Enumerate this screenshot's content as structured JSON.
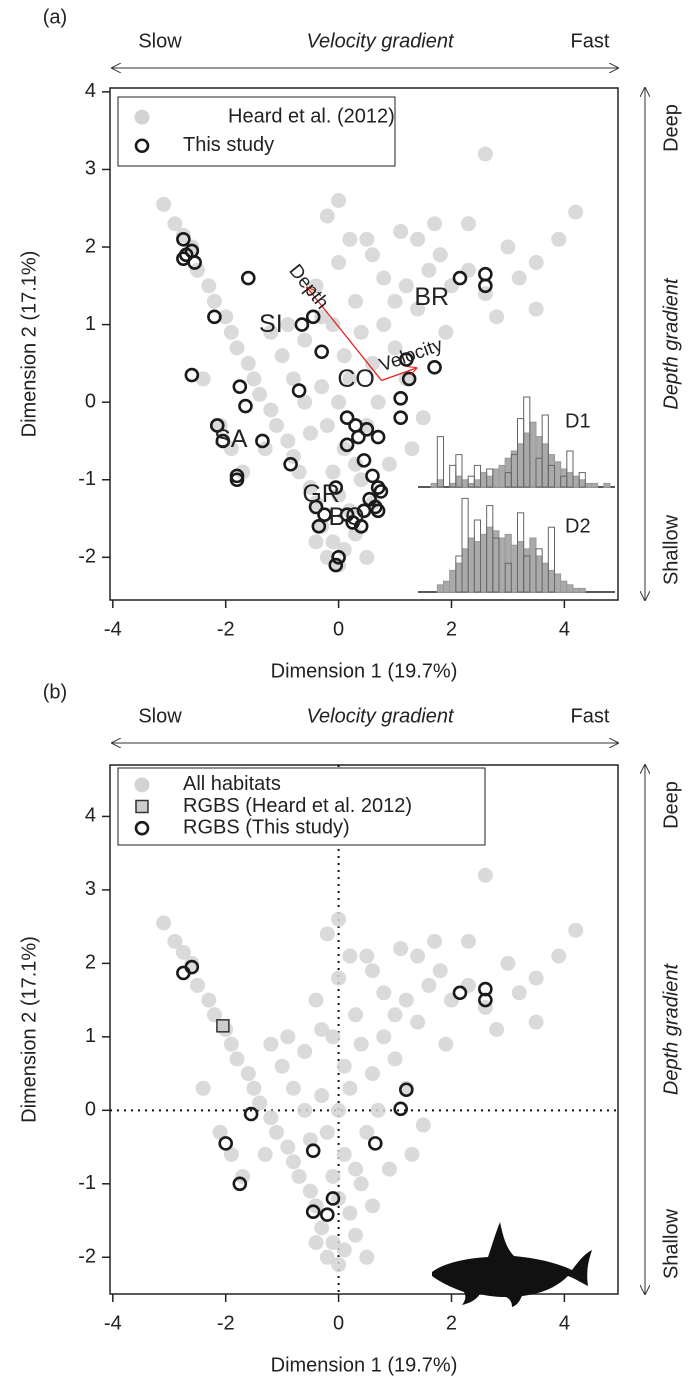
{
  "chart_data": [
    {
      "type": "scatter",
      "panel_label": "(a)",
      "x_gradient": {
        "low": "Slow",
        "label": "Velocity gradient",
        "high": "Fast"
      },
      "y_gradient": {
        "high": "Deep",
        "label": "Depth gradient",
        "low": "Shallow"
      },
      "xlabel": "Dimension 1 (19.7%)",
      "ylabel": "Dimension 2 (17.1%)",
      "xlim": [
        -4.05,
        4.95
      ],
      "ylim": [
        -2.55,
        4.05
      ],
      "xticks": [
        -4,
        -2,
        0,
        2,
        4
      ],
      "yticks": [
        -2,
        -1,
        0,
        1,
        2,
        3,
        4
      ],
      "series": [
        {
          "name": "Heard et al. (2012)",
          "color": "#d3d3d3",
          "marker": "filled-circle",
          "x": [
            -3.1,
            -2.9,
            -2.75,
            -2.6,
            -2.5,
            -2.3,
            -2.2,
            -2.0,
            -1.9,
            -1.8,
            -1.6,
            -1.5,
            -1.4,
            -1.2,
            -1.1,
            -0.9,
            -0.8,
            -0.7,
            -0.5,
            -0.4,
            -2.4,
            -2.1,
            -1.9,
            -1.7,
            -1.3,
            -1.0,
            -0.9,
            -1.2,
            -0.6,
            -0.8,
            -0.3,
            -0.1,
            0.0,
            0.1,
            0.3,
            -0.2,
            0.2,
            0.0,
            -0.1,
            0.1,
            -0.2,
            0.0,
            0.2,
            -0.3,
            0.1,
            -0.1,
            0.3,
            -0.4,
            0.0,
            -0.2,
            0.0,
            0.2,
            0.5,
            -0.3,
            0.4,
            0.6,
            0.5,
            0.4,
            0.6,
            -0.5,
            -0.6,
            0.7,
            0.3,
            -0.4,
            0.5,
            0.8,
            1.0,
            1.2,
            1.4,
            1.6,
            1.8,
            1.7,
            2.0,
            2.3,
            2.6,
            2.8,
            3.0,
            3.2,
            3.5,
            3.9,
            4.2,
            2.6,
            1.4,
            1.0,
            1.2,
            1.5,
            1.3,
            0.9,
            0.8,
            1.1,
            0.6,
            2.3,
            3.5,
            1.9
          ],
          "values": [
            2.55,
            2.3,
            2.15,
            2.0,
            1.7,
            1.5,
            1.3,
            1.1,
            0.9,
            0.7,
            0.5,
            0.3,
            0.1,
            -0.1,
            -0.3,
            -0.5,
            -0.7,
            -0.9,
            -1.1,
            -1.3,
            0.3,
            -0.3,
            -0.6,
            -0.9,
            -0.6,
            0.6,
            1.0,
            0.9,
            0.8,
            0.3,
            -1.6,
            -1.8,
            -2.1,
            -1.9,
            -1.7,
            -2.0,
            -1.4,
            -1.2,
            -0.9,
            -0.6,
            -0.3,
            0.0,
            0.3,
            0.2,
            0.6,
            1.0,
            1.3,
            1.5,
            1.8,
            2.4,
            2.6,
            2.1,
            2.1,
            1.1,
            0.9,
            0.5,
            -0.3,
            -1.0,
            -1.3,
            -0.4,
            0.0,
            0.0,
            -0.8,
            -1.8,
            -2.0,
            1.0,
            1.3,
            1.5,
            1.2,
            1.7,
            1.9,
            2.3,
            1.5,
            1.7,
            1.4,
            1.1,
            2.0,
            1.6,
            1.8,
            2.1,
            2.45,
            3.2,
            2.1,
            0.7,
            0.3,
            -0.2,
            -0.6,
            -0.8,
            1.6,
            2.2,
            1.9,
            2.3,
            1.2,
            0.9
          ]
        },
        {
          "name": "This study",
          "color": "#1a1a1a",
          "marker": "open-circle",
          "x": [
            -2.75,
            -2.7,
            -2.6,
            -2.55,
            -2.75,
            -1.6,
            -2.2,
            -2.6,
            -1.75,
            -1.65,
            -2.15,
            -2.05,
            -1.8,
            -1.8,
            -1.35,
            -0.85,
            -0.65,
            -0.45,
            -0.3,
            -0.7,
            0.15,
            0.3,
            0.15,
            0.35,
            0.5,
            0.7,
            0.45,
            0.6,
            0.7,
            0.75,
            0.55,
            0.45,
            0.25,
            0.4,
            0.7,
            -0.05,
            -0.4,
            -0.25,
            -0.35,
            0.15,
            0.0,
            -0.05,
            0.65,
            1.1,
            1.1,
            1.2,
            1.25,
            1.7,
            2.15,
            2.6,
            2.6
          ],
          "values": [
            2.1,
            1.9,
            1.95,
            1.8,
            1.85,
            1.6,
            1.1,
            0.35,
            0.2,
            -0.05,
            -0.3,
            -0.5,
            -0.95,
            -1.0,
            -0.5,
            -0.8,
            1.0,
            1.1,
            0.65,
            0.15,
            -0.2,
            -0.3,
            -0.55,
            -0.45,
            -0.35,
            -0.45,
            -0.75,
            -0.95,
            -1.1,
            -1.15,
            -1.25,
            -1.4,
            -1.55,
            -1.6,
            -1.4,
            -1.1,
            -1.35,
            -1.45,
            -1.6,
            -1.45,
            -2.0,
            -2.1,
            -1.35,
            0.05,
            -0.2,
            0.55,
            0.3,
            0.45,
            1.6,
            1.65,
            1.5
          ]
        }
      ],
      "habitat_labels": [
        "SI",
        "SA",
        "CO",
        "GR",
        "BO",
        "BR"
      ],
      "annotation_color": "#e8231e",
      "vectors": [
        {
          "label": "Depth",
          "from": [
            0.76,
            0.28
          ],
          "to": [
            -0.56,
            1.48
          ]
        },
        {
          "label": "Velocity",
          "from": [
            0.76,
            0.28
          ],
          "to": [
            1.38,
            0.44
          ]
        }
      ],
      "insets": [
        {
          "label": "D1",
          "filled_counts": [
            0,
            1,
            2,
            0,
            1,
            3,
            2,
            1,
            2,
            4,
            3,
            5,
            6,
            8,
            10,
            12,
            15,
            18,
            14,
            12,
            9,
            7,
            5,
            4,
            3,
            2,
            1,
            1,
            0,
            1
          ],
          "open_counts": [
            0,
            0,
            14,
            0,
            6,
            9,
            0,
            3,
            6,
            0,
            5,
            0,
            0,
            4,
            9,
            19,
            25,
            0,
            8,
            20,
            6,
            0,
            3,
            10,
            0,
            4,
            0,
            0,
            0,
            0
          ]
        },
        {
          "label": "D2",
          "filled_counts": [
            0,
            0,
            2,
            3,
            6,
            8,
            12,
            15,
            14,
            16,
            18,
            17,
            15,
            16,
            13,
            14,
            12,
            15,
            10,
            8,
            6,
            5,
            3,
            2,
            1,
            1,
            0,
            0,
            0,
            0
          ],
          "open_counts": [
            0,
            0,
            0,
            0,
            0,
            10,
            26,
            0,
            20,
            0,
            24,
            15,
            0,
            8,
            0,
            22,
            10,
            0,
            12,
            0,
            18,
            0,
            0,
            0,
            0,
            0,
            0,
            0,
            0,
            0
          ]
        }
      ]
    },
    {
      "type": "scatter",
      "panel_label": "(b)",
      "x_gradient": {
        "low": "Slow",
        "label": "Velocity gradient",
        "high": "Fast"
      },
      "y_gradient": {
        "high": "Deep",
        "label": "Depth gradient",
        "low": "Shallow"
      },
      "xlabel": "Dimension 1 (19.7%)",
      "ylabel": "Dimension 2 (17.1%)",
      "xlim": [
        -4.05,
        4.95
      ],
      "ylim": [
        -2.5,
        4.7
      ],
      "xticks": [
        -4,
        -2,
        0,
        2,
        4
      ],
      "yticks": [
        -2,
        -1,
        0,
        1,
        2,
        3,
        4
      ],
      "reference_x": 0,
      "reference_y": 0,
      "series": [
        {
          "name": "All habitats",
          "color": "#d3d3d3",
          "marker": "filled-circle",
          "x": [
            -3.1,
            -2.9,
            -2.75,
            -2.6,
            -2.5,
            -2.3,
            -2.2,
            -2.0,
            -1.9,
            -1.8,
            -1.6,
            -1.5,
            -1.4,
            -1.2,
            -1.1,
            -0.9,
            -0.8,
            -0.7,
            -0.5,
            -0.4,
            -2.4,
            -2.1,
            -1.9,
            -1.7,
            -1.3,
            -1.0,
            -0.9,
            -1.2,
            -0.6,
            -0.8,
            -0.3,
            -0.1,
            0.0,
            0.1,
            0.3,
            -0.2,
            0.2,
            0.0,
            -0.1,
            0.1,
            -0.2,
            0.0,
            0.2,
            -0.3,
            0.1,
            -0.1,
            0.3,
            -0.4,
            0.0,
            -0.2,
            0.0,
            0.2,
            0.5,
            -0.3,
            0.4,
            0.6,
            0.5,
            0.4,
            0.6,
            -0.5,
            -0.6,
            0.7,
            0.3,
            -0.4,
            0.5,
            0.8,
            1.0,
            1.2,
            1.4,
            1.6,
            1.8,
            1.7,
            2.0,
            2.3,
            2.6,
            2.8,
            3.0,
            3.2,
            3.5,
            3.9,
            4.2,
            2.6,
            1.4,
            1.0,
            1.2,
            1.5,
            1.3,
            0.9,
            0.8,
            1.1,
            0.6,
            2.3,
            3.5,
            1.9
          ],
          "values": [
            2.55,
            2.3,
            2.15,
            2.0,
            1.7,
            1.5,
            1.3,
            1.1,
            0.9,
            0.7,
            0.5,
            0.3,
            0.1,
            -0.1,
            -0.3,
            -0.5,
            -0.7,
            -0.9,
            -1.1,
            -1.3,
            0.3,
            -0.3,
            -0.6,
            -0.9,
            -0.6,
            0.6,
            1.0,
            0.9,
            0.8,
            0.3,
            -1.6,
            -1.8,
            -2.1,
            -1.9,
            -1.7,
            -2.0,
            -1.4,
            -1.2,
            -0.9,
            -0.6,
            -0.3,
            0.0,
            0.3,
            0.2,
            0.6,
            1.0,
            1.3,
            1.5,
            1.8,
            2.4,
            2.6,
            2.1,
            2.1,
            1.1,
            0.9,
            0.5,
            -0.3,
            -1.0,
            -1.3,
            -0.4,
            0.0,
            0.0,
            -0.8,
            -1.8,
            -2.0,
            1.0,
            1.3,
            1.5,
            1.2,
            1.7,
            1.9,
            2.3,
            1.5,
            1.7,
            1.4,
            1.1,
            2.0,
            1.6,
            1.8,
            2.1,
            2.45,
            3.2,
            2.1,
            0.7,
            0.3,
            -0.2,
            -0.6,
            -0.8,
            1.6,
            2.2,
            1.9,
            2.3,
            1.2,
            0.9
          ]
        },
        {
          "name": "RGBS (Heard et al. 2012)",
          "color": "#333333",
          "marker": "open-square",
          "x": [
            -2.05
          ],
          "values": [
            1.15
          ]
        },
        {
          "name": "RGBS (This study)",
          "color": "#1a1a1a",
          "marker": "open-circle",
          "x": [
            -2.75,
            -2.6,
            -1.55,
            -2.0,
            -1.75,
            -0.45,
            0.65,
            1.1,
            1.2,
            2.15,
            2.6,
            2.6,
            -0.45,
            -0.2,
            -0.1
          ],
          "values": [
            1.87,
            1.95,
            -0.05,
            -0.45,
            -1.0,
            -0.55,
            -0.45,
            0.02,
            0.28,
            1.6,
            1.65,
            1.5,
            -1.38,
            -1.42,
            -1.2
          ]
        }
      ]
    }
  ]
}
